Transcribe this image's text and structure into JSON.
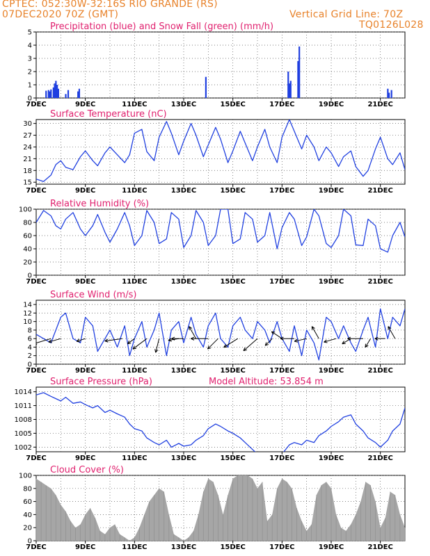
{
  "header": {
    "line1": "CPTEC:   052:30W-32:16S  RIO GRANDE (RS)",
    "line2": "07DEC2020 70Z (GMT)",
    "grid_note": "Vertical Grid Line: 70Z",
    "model_code": "TQ0126L028"
  },
  "colors": {
    "precip": "#1f3fe0",
    "snow": "#2fa84a",
    "line": "#2040e0",
    "cloud": "#a6a6a6",
    "title": "#e0206e",
    "header": "#e8822a"
  },
  "x_axis": {
    "days": 15,
    "tick_labels": [
      "7DEC",
      "9DEC",
      "11DEC",
      "13DEC",
      "15DEC",
      "17DEC",
      "19DEC",
      "21DEC"
    ],
    "tick_days": [
      0,
      2,
      4,
      6,
      8,
      10,
      12,
      14
    ]
  },
  "chart_data": [
    {
      "type": "bar",
      "title": "Precipitation (blue) and Snow Fall (green) (mm/h)",
      "ylim": [
        0,
        5
      ],
      "yticks": [
        0,
        1,
        2,
        3,
        4,
        5
      ],
      "series": [
        {
          "name": "Precipitation",
          "points": [
            [
              0.4,
              0.55
            ],
            [
              0.5,
              0.6
            ],
            [
              0.55,
              0.5
            ],
            [
              0.6,
              0.65
            ],
            [
              0.7,
              0.8
            ],
            [
              0.75,
              1.1
            ],
            [
              0.8,
              1.3
            ],
            [
              0.85,
              1.0
            ],
            [
              0.9,
              0.7
            ],
            [
              1.2,
              0.3
            ],
            [
              1.3,
              0.6
            ],
            [
              1.7,
              0.5
            ],
            [
              1.75,
              0.7
            ],
            [
              6.9,
              1.6
            ],
            [
              10.25,
              2.0
            ],
            [
              10.3,
              1.1
            ],
            [
              10.35,
              1.3
            ],
            [
              10.65,
              2.8
            ],
            [
              10.7,
              3.9
            ],
            [
              14.3,
              0.7
            ],
            [
              14.35,
              0.4
            ],
            [
              14.45,
              0.6
            ]
          ]
        },
        {
          "name": "Snow Fall",
          "points": []
        }
      ]
    },
    {
      "type": "line",
      "title": "Surface Temperature (nC)",
      "ylim": [
        14.5,
        31
      ],
      "yticks": [
        15,
        18,
        21,
        24,
        27,
        30
      ],
      "x": [
        0,
        0.3,
        0.6,
        0.8,
        1.0,
        1.2,
        1.5,
        1.8,
        2.0,
        2.3,
        2.5,
        2.8,
        3.0,
        3.3,
        3.6,
        3.8,
        4.0,
        4.3,
        4.5,
        4.8,
        5.0,
        5.3,
        5.5,
        5.8,
        6.0,
        6.3,
        6.5,
        6.8,
        7.0,
        7.3,
        7.5,
        7.8,
        8.0,
        8.3,
        8.5,
        8.8,
        9.0,
        9.3,
        9.5,
        9.8,
        10.0,
        10.3,
        10.5,
        10.8,
        11.0,
        11.3,
        11.5,
        11.8,
        12.0,
        12.3,
        12.5,
        12.8,
        13.0,
        13.3,
        13.5,
        13.8,
        14.0,
        14.3,
        14.5,
        14.8,
        15.0
      ],
      "values": [
        15.8,
        15.2,
        16.8,
        19.5,
        20.5,
        18.8,
        18.2,
        21.5,
        23.0,
        20.5,
        19.2,
        22.5,
        24.0,
        22.0,
        20.0,
        22.0,
        27.5,
        28.5,
        22.8,
        20.5,
        26.5,
        30.5,
        27.5,
        22.0,
        25.5,
        30.0,
        27.0,
        21.5,
        24.5,
        29.0,
        26.0,
        20.0,
        23.0,
        28.0,
        25.0,
        20.5,
        24.0,
        28.5,
        24.0,
        20.0,
        26.5,
        31.0,
        28.0,
        23.5,
        27.0,
        24.0,
        20.5,
        24.0,
        22.5,
        19.0,
        21.5,
        23.0,
        19.0,
        16.5,
        18.0,
        23.5,
        26.5,
        21.0,
        19.5,
        22.5,
        18.2
      ]
    },
    {
      "type": "line",
      "title": "Relative Humidity (%)",
      "ylim": [
        0,
        100
      ],
      "yticks": [
        0,
        20,
        40,
        60,
        80,
        100
      ],
      "x": [
        0,
        0.3,
        0.6,
        0.8,
        1.0,
        1.2,
        1.5,
        1.8,
        2.0,
        2.3,
        2.5,
        2.8,
        3.0,
        3.3,
        3.6,
        3.8,
        4.0,
        4.3,
        4.5,
        4.8,
        5.0,
        5.3,
        5.5,
        5.8,
        6.0,
        6.3,
        6.5,
        6.8,
        7.0,
        7.3,
        7.5,
        7.8,
        8.0,
        8.3,
        8.5,
        8.8,
        9.0,
        9.3,
        9.5,
        9.8,
        10.0,
        10.3,
        10.5,
        10.8,
        11.0,
        11.3,
        11.5,
        11.8,
        12.0,
        12.3,
        12.5,
        12.8,
        13.0,
        13.3,
        13.5,
        13.8,
        14.0,
        14.3,
        14.5,
        14.8,
        15.0
      ],
      "values": [
        80,
        98,
        90,
        75,
        70,
        85,
        95,
        70,
        60,
        75,
        92,
        65,
        50,
        70,
        95,
        75,
        45,
        60,
        98,
        80,
        48,
        55,
        95,
        85,
        42,
        60,
        98,
        80,
        45,
        60,
        100,
        100,
        48,
        55,
        95,
        85,
        50,
        60,
        95,
        40,
        72,
        95,
        85,
        45,
        58,
        100,
        90,
        48,
        42,
        60,
        100,
        90,
        46,
        45,
        85,
        75,
        40,
        35,
        60,
        80,
        58
      ]
    },
    {
      "type": "line",
      "title": "Surface Wind (m/s)",
      "ylim": [
        0,
        15
      ],
      "yticks": [
        0,
        2,
        4,
        6,
        8,
        10,
        12,
        14
      ],
      "x": [
        0,
        0.3,
        0.6,
        0.8,
        1.0,
        1.2,
        1.5,
        1.8,
        2.0,
        2.3,
        2.5,
        2.8,
        3.0,
        3.3,
        3.6,
        3.8,
        4.0,
        4.3,
        4.5,
        4.8,
        5.0,
        5.3,
        5.5,
        5.8,
        6.0,
        6.3,
        6.5,
        6.8,
        7.0,
        7.3,
        7.5,
        7.8,
        8.0,
        8.3,
        8.5,
        8.8,
        9.0,
        9.3,
        9.5,
        9.8,
        10.0,
        10.3,
        10.5,
        10.8,
        11.0,
        11.3,
        11.5,
        11.8,
        12.0,
        12.3,
        12.5,
        12.8,
        13.0,
        13.3,
        13.5,
        13.8,
        14.0,
        14.3,
        14.5,
        14.8,
        15.0
      ],
      "values": [
        7,
        6,
        5,
        8,
        11,
        12,
        6,
        5,
        11,
        9,
        3,
        6,
        8,
        4,
        9,
        2,
        6,
        10,
        4,
        8,
        12,
        2,
        8,
        10,
        5,
        11,
        7,
        4,
        9,
        12,
        6,
        4,
        9,
        11,
        8,
        6,
        10,
        8,
        5,
        10,
        6,
        3,
        9,
        2,
        8,
        5,
        1,
        11,
        10,
        6,
        9,
        5,
        3,
        8,
        11,
        4,
        13,
        6,
        11,
        9,
        13
      ],
      "arrows": [
        [
          0.0,
          -5.0,
          -1.0
        ],
        [
          0.6,
          -5.0,
          -1.5
        ],
        [
          1.0,
          -3.5,
          -1.0
        ],
        [
          2.0,
          -2.5,
          -0.8
        ],
        [
          3.5,
          -5.0,
          -0.7
        ],
        [
          4.0,
          -2.0,
          -1.5
        ],
        [
          4.5,
          -4.0,
          -3.0
        ],
        [
          5.0,
          -1.0,
          -4.0
        ],
        [
          5.8,
          -3.0,
          -0.5
        ],
        [
          6.0,
          -3.5,
          0.0
        ],
        [
          6.5,
          -2.0,
          3.5
        ],
        [
          7.0,
          -5.0,
          0.0
        ],
        [
          7.4,
          -3.0,
          -3.0
        ],
        [
          8.2,
          -4.0,
          -2.5
        ],
        [
          9.0,
          -4.0,
          -3.5
        ],
        [
          9.6,
          -2.0,
          -2.0
        ],
        [
          10.0,
          -3.0,
          2.0
        ],
        [
          10.5,
          -4.0,
          0.0
        ],
        [
          11.0,
          -3.5,
          -0.8
        ],
        [
          11.5,
          -2.0,
          3.5
        ],
        [
          12.2,
          -3.5,
          -1.0
        ],
        [
          12.8,
          -2.5,
          -1.5
        ],
        [
          13.3,
          -4.5,
          0.0
        ],
        [
          13.6,
          -1.5,
          -2.5
        ],
        [
          14.2,
          -3.0,
          0.0
        ],
        [
          14.6,
          -2.0,
          3.5
        ]
      ]
    },
    {
      "type": "line",
      "title": "Surface Pressure (hPa)",
      "subtitle": "Model Altitude: 53.854 m",
      "ylim": [
        1001,
        1015
      ],
      "yticks": [
        1002,
        1005,
        1008,
        1011,
        1014
      ],
      "x": [
        0,
        0.3,
        0.6,
        0.8,
        1.0,
        1.2,
        1.5,
        1.8,
        2.0,
        2.3,
        2.5,
        2.8,
        3.0,
        3.3,
        3.6,
        3.8,
        4.0,
        4.3,
        4.5,
        4.8,
        5.0,
        5.3,
        5.5,
        5.8,
        6.0,
        6.3,
        6.5,
        6.8,
        7.0,
        7.3,
        7.5,
        7.8,
        8.0,
        8.3,
        8.5,
        8.8,
        9.0,
        9.3,
        9.5,
        9.8,
        10.0,
        10.3,
        10.5,
        10.8,
        11.0,
        11.3,
        11.5,
        11.8,
        12.0,
        12.3,
        12.5,
        12.8,
        13.0,
        13.3,
        13.5,
        13.8,
        14.0,
        14.3,
        14.5,
        14.8,
        15.0
      ],
      "values": [
        1013.3,
        1013.8,
        1013.0,
        1012.5,
        1012.0,
        1012.8,
        1011.5,
        1011.8,
        1011.2,
        1010.5,
        1011.0,
        1009.5,
        1010.0,
        1009.2,
        1008.5,
        1007.0,
        1006.0,
        1005.5,
        1004.0,
        1003.0,
        1002.5,
        1003.5,
        1002.0,
        1002.8,
        1002.2,
        1002.5,
        1003.5,
        1004.5,
        1006.0,
        1007.0,
        1006.5,
        1005.5,
        1005.0,
        1004.0,
        1003.0,
        1001.5,
        1000.5,
        1000.0,
        1000.0,
        999.5,
        1000.5,
        1002.5,
        1003.0,
        1002.5,
        1003.5,
        1003.0,
        1004.5,
        1005.5,
        1006.5,
        1007.5,
        1008.5,
        1009.0,
        1007.0,
        1005.5,
        1004.0,
        1003.0,
        1002.0,
        1003.5,
        1005.5,
        1007.0,
        1010.5
      ]
    },
    {
      "type": "area",
      "title": "Cloud Cover (%)",
      "ylim": [
        0,
        100
      ],
      "yticks": [
        0,
        20,
        40,
        60,
        80,
        100
      ],
      "x": [
        0,
        0.2,
        0.4,
        0.6,
        0.8,
        1.0,
        1.2,
        1.4,
        1.6,
        1.8,
        2.0,
        2.2,
        2.4,
        2.6,
        2.8,
        3.0,
        3.2,
        3.4,
        3.6,
        3.8,
        4.0,
        4.2,
        4.4,
        4.6,
        4.8,
        5.0,
        5.2,
        5.4,
        5.6,
        5.8,
        6.0,
        6.2,
        6.4,
        6.6,
        6.8,
        7.0,
        7.2,
        7.4,
        7.6,
        7.8,
        8.0,
        8.2,
        8.4,
        8.6,
        8.8,
        9.0,
        9.2,
        9.4,
        9.6,
        9.8,
        10.0,
        10.2,
        10.4,
        10.6,
        10.8,
        11.0,
        11.2,
        11.4,
        11.6,
        11.8,
        12.0,
        12.2,
        12.4,
        12.6,
        12.8,
        13.0,
        13.2,
        13.4,
        13.6,
        13.8,
        14.0,
        14.2,
        14.4,
        14.6,
        14.8,
        15.0
      ],
      "values": [
        95,
        90,
        85,
        80,
        70,
        55,
        45,
        30,
        20,
        25,
        40,
        50,
        35,
        15,
        10,
        20,
        25,
        10,
        5,
        0,
        5,
        20,
        40,
        60,
        70,
        80,
        75,
        40,
        10,
        5,
        0,
        5,
        15,
        40,
        75,
        95,
        90,
        70,
        40,
        70,
        95,
        100,
        100,
        100,
        95,
        80,
        90,
        30,
        40,
        80,
        95,
        90,
        80,
        50,
        30,
        15,
        25,
        70,
        85,
        90,
        80,
        40,
        20,
        15,
        25,
        40,
        60,
        90,
        85,
        60,
        20,
        35,
        75,
        70,
        40,
        20
      ]
    }
  ]
}
